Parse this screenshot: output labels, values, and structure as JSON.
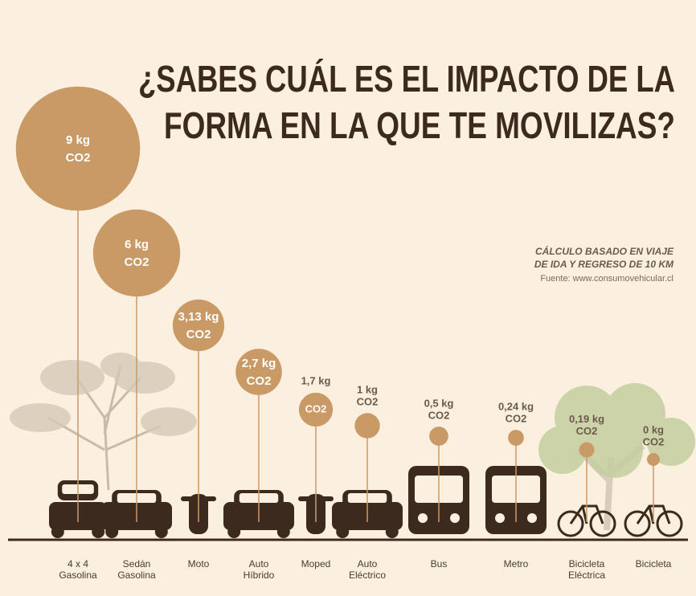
{
  "chart_data": {
    "type": "bubble",
    "title": [
      "¿SABES CUÁL ES EL IMPACTO DE LA",
      "FORMA EN LA QUE TE MOVILIZAS?"
    ],
    "note": [
      "CÁLCULO BASADO EN VIAJE",
      "DE IDA Y REGRESO DE 10 KM"
    ],
    "source": "Fuente: www.consumovehicular.cl",
    "unit": "CO2",
    "categories": [
      [
        "4 x 4",
        "Gasolina"
      ],
      [
        "Sedán",
        "Gasolina"
      ],
      [
        "Moto"
      ],
      [
        "Auto",
        "Híbrido"
      ],
      [
        "Moped"
      ],
      [
        "Auto",
        "Eléctrico"
      ],
      [
        "Bus"
      ],
      [
        "Metro"
      ],
      [
        "Bicicleta",
        "Eléctrica"
      ],
      [
        "Bicicleta"
      ]
    ],
    "values": [
      9,
      6,
      3.13,
      2.7,
      1.7,
      1,
      0.5,
      0.24,
      0.19,
      0
    ],
    "value_labels": [
      "9 kg",
      "6 kg",
      "3,13 kg",
      "2,7 kg",
      "1,7 kg",
      "1 kg",
      "0,5 kg",
      "0,24 kg",
      "0,19 kg",
      "0 kg"
    ],
    "color": "#c99a66"
  }
}
